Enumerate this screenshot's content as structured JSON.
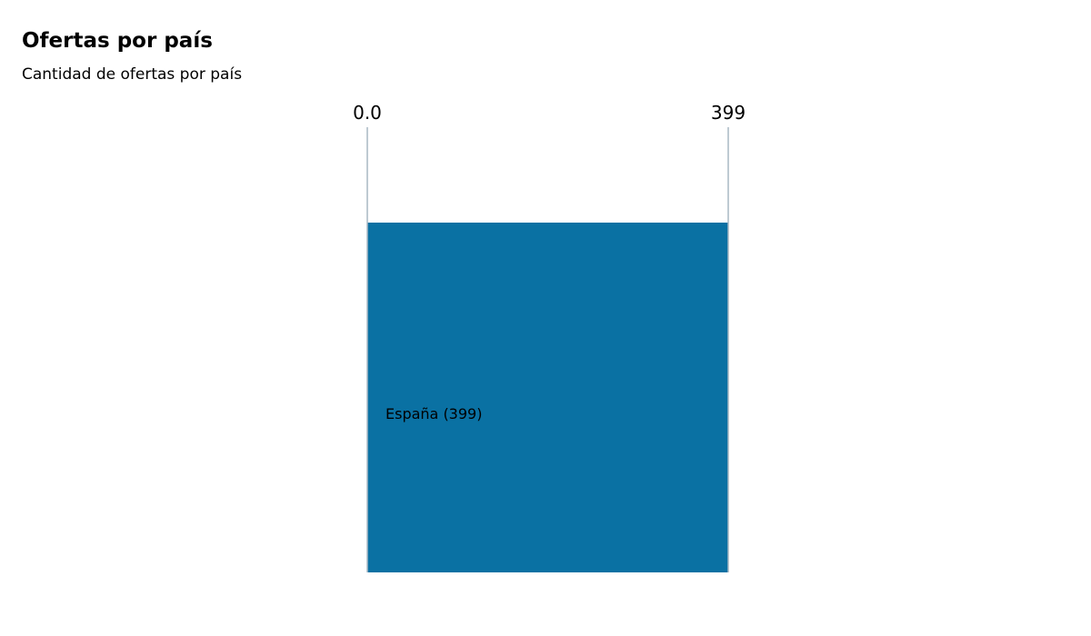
{
  "title": "Ofertas por país",
  "subtitle": "Cantidad de ofertas por país",
  "colors": {
    "bar": "#0a71a3",
    "axis_line": "#a8b8c4",
    "text": "#000000"
  },
  "chart_data": {
    "type": "bar",
    "orientation": "horizontal",
    "categories": [
      "España"
    ],
    "values": [
      399
    ],
    "bar_labels": [
      "España (399)"
    ],
    "x_ticks": [
      "0.0",
      "399"
    ],
    "xlim": [
      0,
      399
    ],
    "title": "Ofertas por país",
    "subtitle": "Cantidad de ofertas por país",
    "xlabel": "",
    "ylabel": "",
    "grid": false,
    "x_axis_position": "top"
  }
}
